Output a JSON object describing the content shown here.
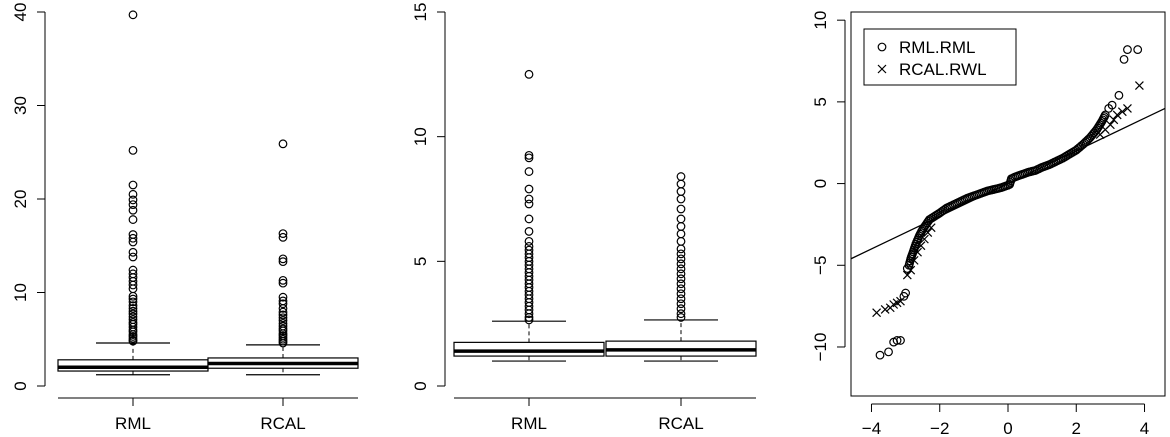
{
  "chart_data": [
    {
      "type": "box",
      "categories": [
        "RML",
        "RCAL"
      ],
      "ylim": [
        0,
        40
      ],
      "yticks": [
        0,
        10,
        20,
        30,
        40
      ],
      "series": [
        {
          "category": "RML",
          "q1": 1.6,
          "median": 2.0,
          "q3": 2.8,
          "whisker_low": 1.2,
          "whisker_high": 4.6,
          "outliers": [
            39.7,
            25.2,
            21.5,
            20.5,
            19.9,
            19.4,
            18.8,
            17.8,
            16.2,
            15.8,
            15.4,
            14.3,
            13.8,
            12.4,
            12.0,
            11.6,
            11.2,
            10.8,
            10.4,
            9.6,
            9.3,
            9.0,
            8.6,
            8.3,
            8.0,
            7.7,
            7.4,
            7.1,
            6.8,
            6.6,
            6.3,
            6.0,
            5.8,
            5.5,
            5.3,
            5.1,
            4.9,
            4.8
          ]
        },
        {
          "category": "RCAL",
          "q1": 1.9,
          "median": 2.4,
          "q3": 3.0,
          "whisker_low": 1.2,
          "whisker_high": 4.4,
          "outliers": [
            25.9,
            16.3,
            15.9,
            13.6,
            13.3,
            11.3,
            11.0,
            9.5,
            9.1,
            8.8,
            8.3,
            7.9,
            7.6,
            7.3,
            7.0,
            6.7,
            6.4,
            6.1,
            5.9,
            5.6,
            5.4,
            5.2,
            5.0,
            4.8,
            4.6
          ]
        }
      ]
    },
    {
      "type": "box",
      "categories": [
        "RML",
        "RCAL"
      ],
      "ylim": [
        0,
        15
      ],
      "yticks": [
        0,
        5,
        10,
        15
      ],
      "series": [
        {
          "category": "RML",
          "q1": 1.2,
          "median": 1.4,
          "q3": 1.75,
          "whisker_low": 1.0,
          "whisker_high": 2.6,
          "outliers": [
            12.5,
            9.25,
            9.15,
            8.6,
            7.9,
            7.5,
            7.3,
            6.7,
            6.2,
            5.8,
            5.6,
            5.45,
            5.3,
            5.15,
            5.0,
            4.85,
            4.7,
            4.55,
            4.4,
            4.25,
            4.1,
            3.95,
            3.8,
            3.65,
            3.5,
            3.35,
            3.2,
            3.05,
            2.9,
            2.75,
            2.65
          ]
        },
        {
          "category": "RCAL",
          "q1": 1.2,
          "median": 1.45,
          "q3": 1.8,
          "whisker_low": 1.0,
          "whisker_high": 2.65,
          "outliers": [
            8.4,
            8.1,
            7.8,
            7.5,
            7.1,
            6.7,
            6.4,
            6.1,
            5.8,
            5.5,
            5.3,
            5.1,
            4.9,
            4.7,
            4.5,
            4.3,
            4.1,
            3.9,
            3.7,
            3.5,
            3.3,
            3.1,
            2.9,
            2.75
          ]
        }
      ]
    },
    {
      "type": "scatter",
      "xlim": [
        -4.6,
        4.6
      ],
      "ylim": [
        -13,
        10.5
      ],
      "xticks": [
        -4,
        -2,
        0,
        2,
        4
      ],
      "yticks": [
        -10,
        -5,
        0,
        5,
        10
      ],
      "legend": {
        "position": "top-left",
        "entries": [
          {
            "label": "RML.RML",
            "marker": "circle"
          },
          {
            "label": "RCAL.RWL",
            "marker": "cross"
          }
        ]
      },
      "reference_line": {
        "intercept": 0,
        "slope": 1
      },
      "series": [
        {
          "name": "RML.RML",
          "marker": "circle",
          "points": [
            [
              -3.75,
              -10.5
            ],
            [
              -3.5,
              -10.3
            ],
            [
              -3.35,
              -9.7
            ],
            [
              -3.25,
              -9.6
            ],
            [
              -3.15,
              -9.6
            ],
            [
              -3.05,
              -6.9
            ],
            [
              -3.0,
              -6.7
            ],
            [
              -2.95,
              -5.2
            ],
            [
              -2.9,
              -5.0
            ],
            [
              -2.85,
              -4.6
            ],
            [
              -2.8,
              -4.3
            ],
            [
              -2.7,
              -3.7
            ],
            [
              -2.6,
              -3.2
            ],
            [
              -2.5,
              -2.8
            ],
            [
              -2.4,
              -2.5
            ],
            [
              -2.3,
              -2.2
            ],
            [
              -2.15,
              -2.0
            ],
            [
              -2.0,
              -1.8
            ],
            [
              -1.8,
              -1.5
            ],
            [
              -1.6,
              -1.3
            ],
            [
              -1.4,
              -1.1
            ],
            [
              -1.2,
              -0.9
            ],
            [
              -1.0,
              -0.75
            ],
            [
              -0.8,
              -0.6
            ],
            [
              -0.6,
              -0.45
            ],
            [
              -0.4,
              -0.35
            ],
            [
              -0.2,
              -0.25
            ],
            [
              0.0,
              -0.1
            ],
            [
              0.05,
              -0.05
            ],
            [
              0.1,
              0.3
            ],
            [
              0.2,
              0.4
            ],
            [
              0.4,
              0.55
            ],
            [
              0.6,
              0.7
            ],
            [
              0.8,
              0.8
            ],
            [
              1.0,
              1.0
            ],
            [
              1.2,
              1.15
            ],
            [
              1.4,
              1.35
            ],
            [
              1.6,
              1.55
            ],
            [
              1.8,
              1.8
            ],
            [
              2.0,
              2.05
            ],
            [
              2.2,
              2.4
            ],
            [
              2.4,
              2.8
            ],
            [
              2.6,
              3.3
            ],
            [
              2.75,
              3.8
            ],
            [
              2.85,
              4.2
            ],
            [
              2.95,
              4.6
            ],
            [
              3.05,
              4.8
            ],
            [
              3.25,
              5.4
            ],
            [
              3.4,
              7.6
            ],
            [
              3.5,
              8.2
            ],
            [
              3.8,
              8.2
            ]
          ]
        },
        {
          "name": "RCAL.RWL",
          "marker": "cross",
          "points": [
            [
              -3.85,
              -7.9
            ],
            [
              -3.6,
              -7.7
            ],
            [
              -3.45,
              -7.6
            ],
            [
              -3.35,
              -7.4
            ],
            [
              -3.25,
              -7.3
            ],
            [
              -3.15,
              -7.2
            ],
            [
              -2.95,
              -5.6
            ],
            [
              -2.85,
              -5.3
            ],
            [
              -2.75,
              -4.7
            ],
            [
              -2.65,
              -4.2
            ],
            [
              -2.55,
              -3.8
            ],
            [
              -2.45,
              -3.4
            ],
            [
              -2.35,
              -3.0
            ],
            [
              -2.25,
              -2.7
            ],
            [
              2.7,
              3.0
            ],
            [
              2.85,
              3.3
            ],
            [
              3.0,
              3.6
            ],
            [
              3.1,
              3.9
            ],
            [
              3.2,
              4.2
            ],
            [
              3.35,
              4.4
            ],
            [
              3.5,
              4.6
            ],
            [
              3.85,
              6.0
            ]
          ]
        }
      ]
    }
  ]
}
